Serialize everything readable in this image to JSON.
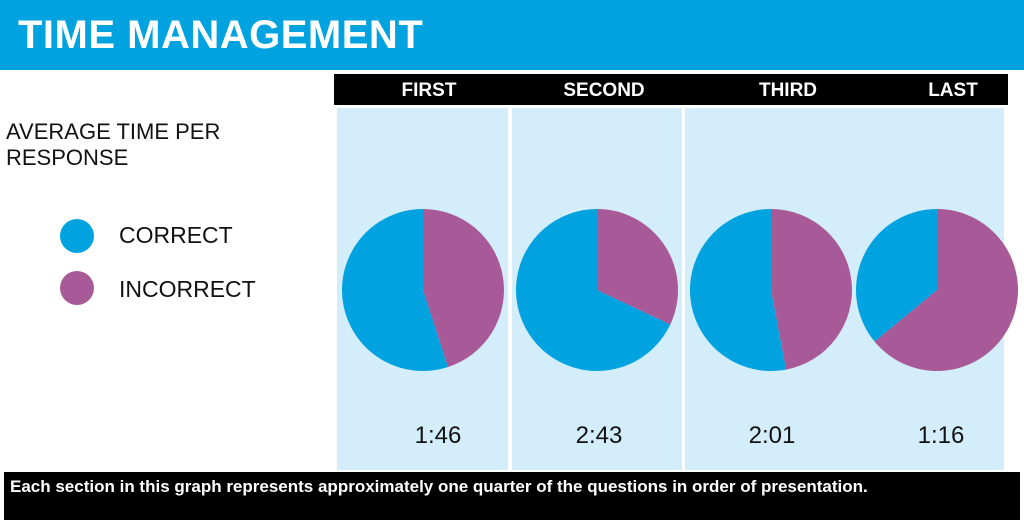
{
  "title": "TIME MANAGEMENT",
  "subtitle": "AVERAGE TIME PER RESPONSE",
  "legend": [
    {
      "label": "CORRECT",
      "color": "#00a3e0"
    },
    {
      "label": "INCORRECT",
      "color": "#a85a98"
    }
  ],
  "footnote": "Each section in this graph represents approximately one quarter of the questions in order of presentation.",
  "colors": {
    "title_bar": "#00a3e0",
    "panel": "#d3eefa",
    "correct": "#00a3e0",
    "incorrect": "#a85a98"
  },
  "chart_data": {
    "type": "pie",
    "title": "AVERAGE TIME PER RESPONSE",
    "series_labels": [
      "CORRECT",
      "INCORRECT"
    ],
    "sections": [
      {
        "name": "FIRST",
        "time": "1:46",
        "incorrect_fraction": 0.45
      },
      {
        "name": "SECOND",
        "time": "2:43",
        "incorrect_fraction": 0.32
      },
      {
        "name": "THIRD",
        "time": "2:01",
        "incorrect_fraction": 0.47
      },
      {
        "name": "LAST",
        "time": "1:16",
        "incorrect_fraction": 0.64
      }
    ]
  }
}
